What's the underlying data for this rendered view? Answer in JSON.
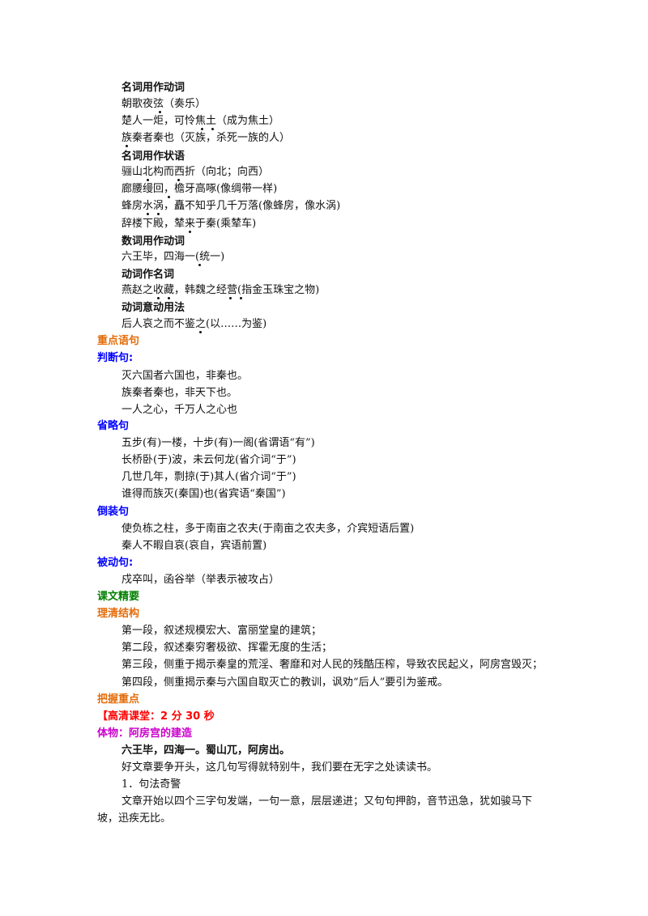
{
  "sections": {
    "noun_as_verb": {
      "title": "名词用作动词",
      "lines": [
        "朝歌夜弦（奏乐）",
        "楚人一炬，可怜焦土（成为焦土）",
        "族秦者秦也（灭族，杀死一族的人）"
      ]
    },
    "noun_as_adverbial": {
      "title": "名词用作状语",
      "lines": [
        "骊山北构而西折（向北；向西）",
        "廊腰缦回，檐牙高啄(像绸带一样)",
        "蜂房水涡，矗不知乎几千万落(像蜂房，像水涡)",
        "辞楼下殿，辇来于秦(乘辇车)"
      ]
    },
    "numeral_as_verb": {
      "title": "数词用作动词",
      "lines": [
        "六王毕，四海一(统一)"
      ]
    },
    "verb_as_noun": {
      "title": "动词作名词",
      "lines": [
        "燕赵之收藏，韩魏之经营(指金玉珠宝之物)"
      ]
    },
    "verb_putative": {
      "title": "动词意动用法",
      "lines": [
        "后人哀之而不鉴之(以……为鉴)"
      ]
    }
  },
  "key_sentences": {
    "title": "重点语句"
  },
  "judgment": {
    "title": "判断句:",
    "lines": [
      "灭六国者六国也，非秦也。",
      "族秦者秦也，非天下也。",
      "一人之心，千万人之心也"
    ]
  },
  "ellipsis": {
    "title": "省略句",
    "lines": [
      "五步(有)一楼，十步(有)一阁(省谓语“有”)",
      "长桥卧(于)波，未云何龙(省介词“于”)",
      "几世几年，剽掠(于)其人(省介词“于”)",
      "谁得而族灭(秦国)也(省宾语“秦国”)"
    ]
  },
  "inversion": {
    "title": "倒装句",
    "lines": [
      "使负栋之柱，多于南亩之农夫(于南亩之农夫多，介宾短语后置)",
      "秦人不暇自哀(哀自，宾语前置)"
    ]
  },
  "passive": {
    "title": "被动句:",
    "lines": [
      "戍卒叫，函谷举（举表示被攻占）"
    ]
  },
  "essentials": {
    "title": "课文精要"
  },
  "structure": {
    "title": "理清结构",
    "lines": [
      "第一段，叙述规模宏大、富丽堂皇的建筑；",
      "第二段，叙述秦穷奢极欲、挥霍无度的生活；",
      "第三段，侧重于揭示秦皇的荒淫、奢靡和对人民的残酷压榨，导致农民起义，阿房宫毁灭；",
      "第四段，侧重揭示秦与六国自取灭亡的教训，讽劝“后人”要引为鉴戒。"
    ]
  },
  "focus": {
    "title": "把握重点"
  },
  "hd_class": {
    "label": "【高清课堂：2 分 30 秒"
  },
  "tiwu": {
    "label": "体物：阿房宫的建造"
  },
  "opening_quote": "六王毕，四海一。蜀山兀，阿房出。",
  "para1": "好文章要争开头，这几句写得就特别牛，我们要在无字之处读读书。",
  "point1": "1．句法奇警",
  "para2_line1": "文章开始以四个三字句发端，一句一意，层层递进；又句句押韵，音节迅急，犹如骏马下",
  "para2_line2": "坡，迅疾无比。"
}
